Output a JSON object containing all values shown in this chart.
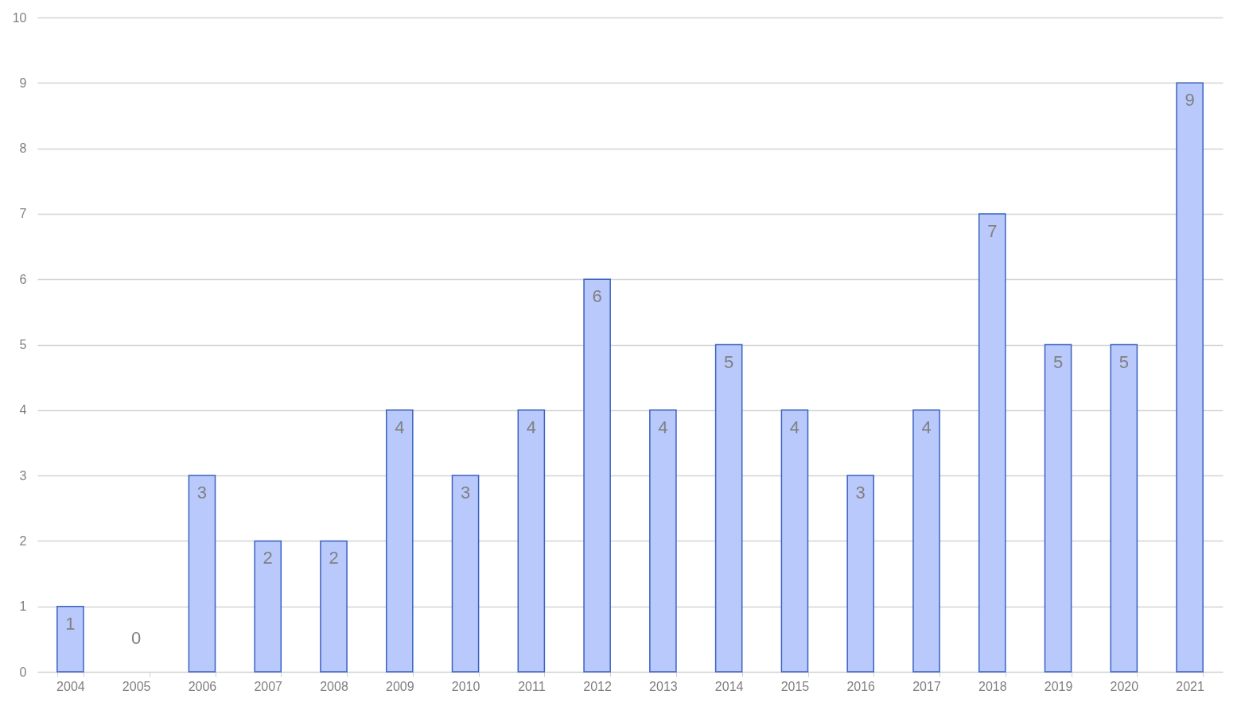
{
  "chart_data": {
    "type": "bar",
    "categories": [
      "2004",
      "2005",
      "2006",
      "2007",
      "2008",
      "2009",
      "2010",
      "2011",
      "2012",
      "2013",
      "2014",
      "2015",
      "2016",
      "2017",
      "2018",
      "2019",
      "2020",
      "2021"
    ],
    "values": [
      1,
      0,
      3,
      2,
      2,
      4,
      3,
      4,
      6,
      4,
      5,
      4,
      3,
      4,
      7,
      5,
      5,
      9
    ],
    "color": "#b9c9fb",
    "ylim": [
      0,
      10
    ],
    "yticks": [
      0,
      1,
      2,
      3,
      4,
      5,
      6,
      7,
      8,
      9,
      10
    ],
    "grid": true,
    "data_labels": true
  }
}
